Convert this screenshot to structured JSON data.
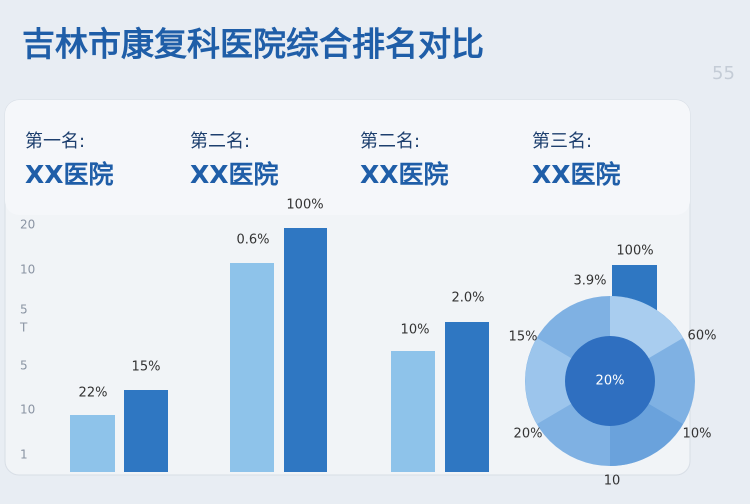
{
  "header": {
    "title": "吉林市康复科医院综合排名对比",
    "corner_note": "55"
  },
  "rankings": [
    {
      "rank": "第一名:",
      "name": "XX医院"
    },
    {
      "rank": "第二名:",
      "name": "XX医院"
    },
    {
      "rank": "第二名:",
      "name": "XX医院"
    },
    {
      "rank": "第三名:",
      "name": "XX医院"
    }
  ],
  "axis_labels": [
    "20",
    "10",
    "5",
    "T",
    "5",
    "10",
    "1"
  ],
  "bar_labels": [
    "22%",
    "15%",
    "0.6%",
    "100%",
    "10%",
    "2.0%"
  ],
  "donut_labels": [
    "100%",
    "3.9%",
    "15%",
    "60%",
    "20%",
    "20%",
    "10%",
    "10"
  ]
}
